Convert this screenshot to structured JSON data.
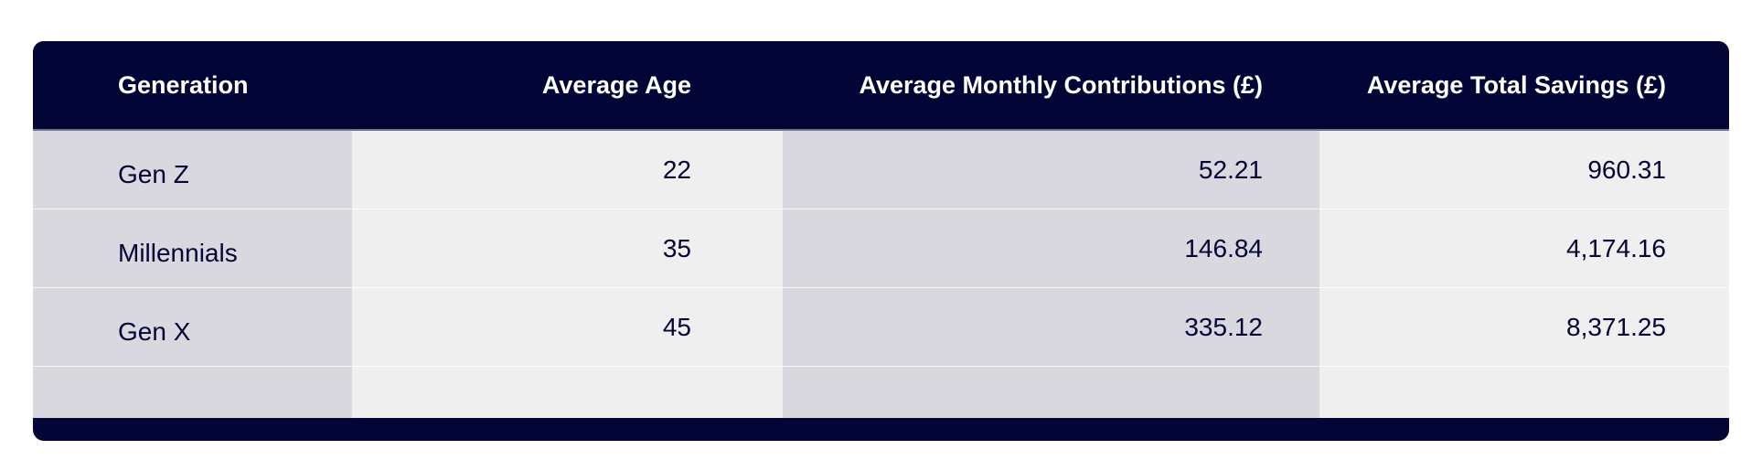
{
  "chart_data": {
    "type": "table",
    "columns": [
      "Generation",
      "Average Age",
      "Average Monthly Contributions (£)",
      "Average Total Savings (£)"
    ],
    "rows": [
      [
        "Gen Z",
        "22",
        "52.21",
        "960.31"
      ],
      [
        "Millennials",
        "35",
        "146.84",
        "4,174.16"
      ],
      [
        "Gen X",
        "45",
        "335.12",
        "8,371.25"
      ]
    ]
  },
  "colors": {
    "header_background": "#030536",
    "header_text": "#ffffff",
    "band_dark": "#d8d8de",
    "band_light": "#efefef",
    "cell_text": "#030536"
  }
}
